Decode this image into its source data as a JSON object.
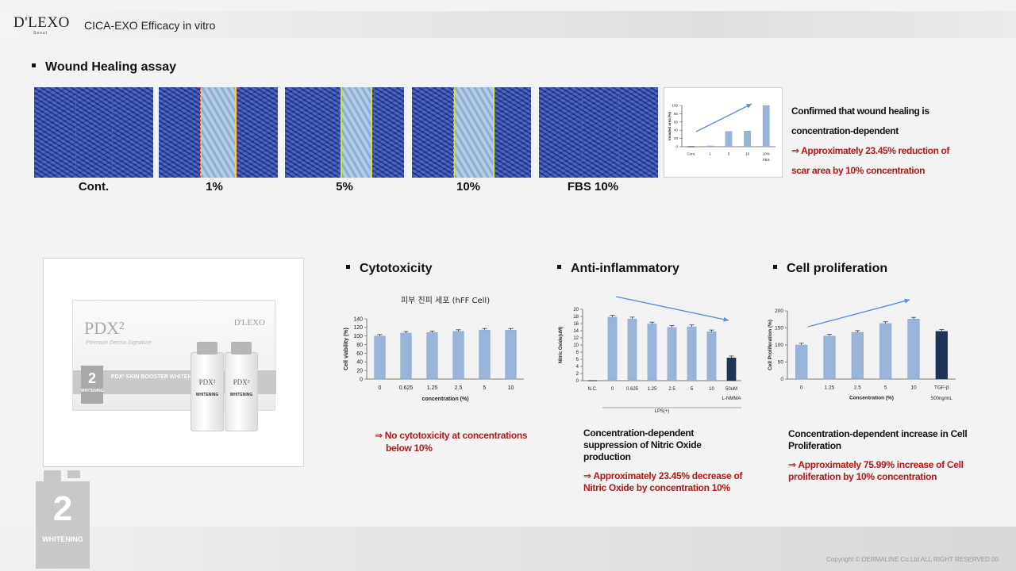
{
  "header": {
    "logo": "D'LEXO",
    "logo_sub": "Seoul",
    "title": "CICA-EXO Efficacy in vitro"
  },
  "wound": {
    "title": "Wound Healing assay",
    "images": [
      {
        "label": "Cont."
      },
      {
        "label": "1%"
      },
      {
        "label": "5%"
      },
      {
        "label": "10%"
      },
      {
        "label": "FBS 10%"
      }
    ],
    "text_line1": "Confirmed that wound healing is",
    "text_line2": "concentration-dependent",
    "text_red1": "⇒  Approximately 23.45% reduction of",
    "text_red2": "scar area by 10% concentration"
  },
  "product": {
    "brand": "D'LEXO",
    "pdx": "PDX²",
    "script": "Premium Derma Signature",
    "stripe_num": "2",
    "stripe_word": "WHITENING",
    "stripe_text": "PDX² SKIN BOOSTER WHITENING",
    "vial_name": "PDX²",
    "vial_word": "WHITENING"
  },
  "badge": {
    "num": "2",
    "word": "WHITENING"
  },
  "cytotoxicity": {
    "title": "Cytotoxicity",
    "desc_red1": "⇒ No cytotoxicity at concentrations",
    "desc_red2": "below 10%"
  },
  "anti": {
    "title": "Anti-inflammatory",
    "desc": "Concentration-dependent suppression of Nitric Oxide production",
    "desc_red": "⇒ Approximately 23.45% decrease of Nitric Oxide by concentration 10%"
  },
  "prolif": {
    "title": "Cell proliferation",
    "desc": "Concentration-dependent increase in Cell Proliferation",
    "desc_red": "⇒ Approximately 75.99% increase of Cell proliferation by 10% concentration"
  },
  "footer": {
    "copyright": "Copyright © DERMALINE Co.Ltd ALL RIGHT RESERVED  00"
  },
  "colors": {
    "bar": "#9ab4d9",
    "bar_dark": "#1f3358",
    "accent_red": "#b11a1a",
    "arrow": "#5b8fcf"
  },
  "chart_data": [
    {
      "type": "bar",
      "title": "",
      "ylabel": "Invaded area (%)",
      "categories": [
        "Cont.",
        "1",
        "5",
        "10",
        "10%"
      ],
      "group_label": "FBS",
      "values": [
        0,
        2,
        37,
        38,
        100
      ],
      "ylim": [
        0,
        100
      ],
      "yticks": [
        "0",
        "20",
        "40",
        "60",
        "80",
        "100"
      ]
    },
    {
      "type": "bar",
      "title": "피부 진피 세포 (hFF Cell)",
      "xlabel": "concentration (%)",
      "ylabel": "Cell viability (%)",
      "categories": [
        "0",
        "0.625",
        "1.25",
        "2.5",
        "5",
        "10"
      ],
      "values": [
        100,
        107,
        108,
        111,
        114,
        114
      ],
      "ylim": [
        0,
        140
      ],
      "yticks": [
        "0",
        "20",
        "40",
        "60",
        "80",
        "100",
        "120",
        "140"
      ]
    },
    {
      "type": "bar",
      "title": "",
      "ylabel": "Nitric Oxide(uM)",
      "categories": [
        "N.C.",
        "0",
        "0.625",
        "1.25",
        "2.5",
        "5",
        "10",
        "50uM"
      ],
      "group_label": "LPS(+)",
      "extra_label": "L-NMMA",
      "values": [
        0,
        17.8,
        17.3,
        15.9,
        14.9,
        15.1,
        13.7,
        6.4
      ],
      "ylim": [
        0,
        20
      ],
      "yticks": [
        "0",
        "2",
        "4",
        "6",
        "8",
        "10",
        "12",
        "14",
        "16",
        "18",
        "20"
      ]
    },
    {
      "type": "bar",
      "title": "",
      "xlabel": "Concentration (%)",
      "ylabel": "Cell Proliferation (%)",
      "categories": [
        "0",
        "1.25",
        "2.5",
        "5",
        "10",
        "TGF-β"
      ],
      "extra_label": "500ng/mL",
      "values": [
        100,
        126,
        137,
        163,
        176,
        140
      ],
      "ylim": [
        0,
        200
      ],
      "yticks": [
        "0",
        "50",
        "100",
        "150",
        "200"
      ]
    }
  ]
}
